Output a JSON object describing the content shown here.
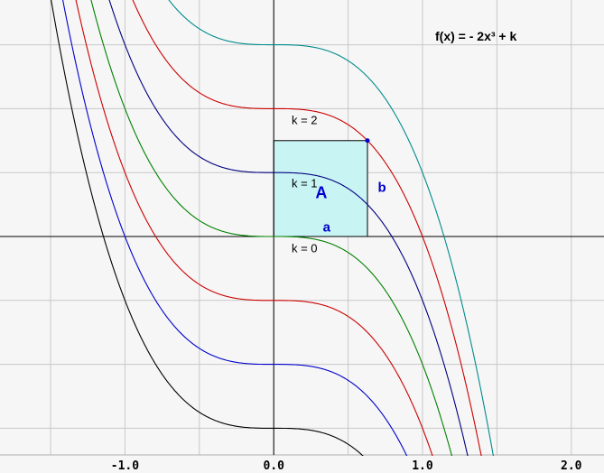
{
  "chart_data": {
    "type": "line",
    "title": "f(x) = - 2x³ + k",
    "xlabel": "",
    "ylabel": "",
    "xlim": [
      -1.84,
      2.22
    ],
    "ylim": [
      -3.7,
      3.7
    ],
    "x_ticks": [
      {
        "value": -1.0,
        "label": "-1.0"
      },
      {
        "value": 0.0,
        "label": "0.0"
      },
      {
        "value": 1.0,
        "label": "1.0"
      },
      {
        "value": 2.0,
        "label": "2.0"
      }
    ],
    "grid_x": [
      -1.5,
      -1.0,
      -0.5,
      0.0,
      0.5,
      1.0,
      1.5,
      2.0
    ],
    "grid_y": [
      -3,
      -2,
      -1,
      0,
      1,
      2,
      3
    ],
    "grid": true,
    "series": [
      {
        "k": -3,
        "color": "#000000"
      },
      {
        "k": -2,
        "color": "#0000cc"
      },
      {
        "k": -1,
        "color": "#cc0000"
      },
      {
        "k": 0,
        "color": "#008000"
      },
      {
        "k": 1,
        "color": "#000080"
      },
      {
        "k": 2,
        "color": "#cc0000"
      },
      {
        "k": 3,
        "color": "#008b8b"
      }
    ],
    "curve_labels": [
      {
        "text": "k = 2",
        "x": 0.12,
        "y": 1.76
      },
      {
        "text": "k = 1",
        "x": 0.12,
        "y": 0.77
      },
      {
        "text": "k = 0",
        "x": 0.12,
        "y": -0.25
      }
    ],
    "rectangle": {
      "x0": 0,
      "y0": 0,
      "x1": 0.63,
      "y1": 1.5,
      "fill": "#c8f4f4"
    },
    "point": {
      "x": 0.63,
      "y": 1.5
    },
    "annotations": [
      {
        "text": "A",
        "x": 0.28,
        "y": 0.6,
        "color": "#0000cc"
      },
      {
        "text": "b",
        "x": 0.7,
        "y": 0.7,
        "color": "#0000cc"
      },
      {
        "text": "a",
        "x": 0.33,
        "y": 0.08,
        "color": "#0000cc"
      }
    ]
  }
}
